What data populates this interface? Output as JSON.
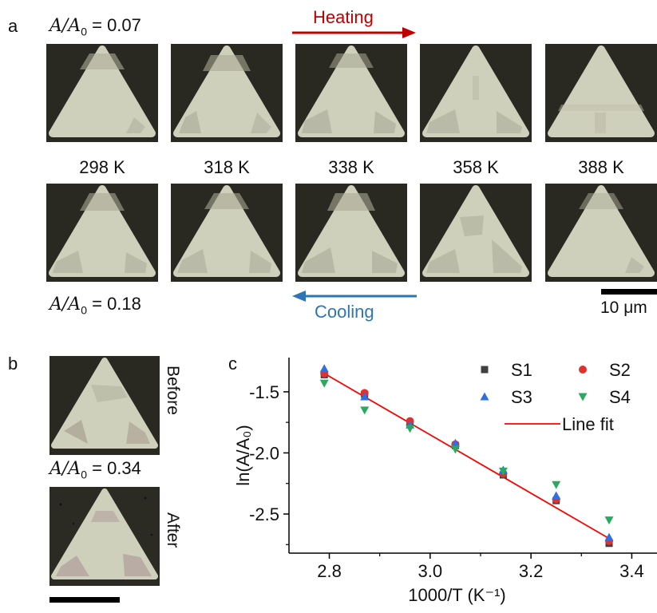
{
  "panels": {
    "a": "a",
    "b": "b",
    "c": "c"
  },
  "panel_a": {
    "ratio_top": {
      "lhs": "A/A",
      "sub": "0",
      "rhs": "= 0.07"
    },
    "ratio_bottom": {
      "lhs": "A/A",
      "sub": "0",
      "rhs": "= 0.18"
    },
    "heating_label": "Heating",
    "cooling_label": "Cooling",
    "temperatures": [
      "298 K",
      "318 K",
      "338 K",
      "358 K",
      "388 K"
    ],
    "scale_label": "10 μm",
    "colors": {
      "heating": "#c00000",
      "cooling": "#2e75b6",
      "frame": "#2a2921",
      "crystal": "#cfd0bc"
    }
  },
  "panel_b": {
    "before_label": "Before",
    "after_label": "After",
    "ratio": {
      "lhs": "A/A",
      "sub": "0",
      "rhs": "= 0.34"
    }
  },
  "chart_data": {
    "type": "scatter",
    "xlabel": "1000/T (K⁻¹)",
    "ylabel": "ln(A/A₀)",
    "xlim": [
      2.72,
      3.45
    ],
    "ylim": [
      -2.82,
      -1.22
    ],
    "xticks": [
      "2.8",
      "3.0",
      "3.2",
      "3.4"
    ],
    "yticks": [
      "-1.5",
      "-2.0",
      "-2.5"
    ],
    "legend_position": "top-right",
    "series": [
      {
        "name": "S1",
        "marker": "square",
        "color": "#404040",
        "x": [
          2.79,
          2.87,
          2.96,
          3.05,
          3.145,
          3.25,
          3.355
        ],
        "y": [
          -1.36,
          -1.52,
          -1.76,
          -1.94,
          -2.18,
          -2.39,
          -2.74
        ]
      },
      {
        "name": "S2",
        "marker": "circle",
        "color": "#e03030",
        "x": [
          2.79,
          2.87,
          2.96,
          3.05,
          3.145,
          3.25,
          3.355
        ],
        "y": [
          -1.35,
          -1.51,
          -1.74,
          -1.93,
          -2.17,
          -2.38,
          -2.72
        ]
      },
      {
        "name": "S3",
        "marker": "triangle-up",
        "color": "#2f6fe0",
        "x": [
          2.79,
          2.87,
          2.96,
          3.05,
          3.145,
          3.25,
          3.355
        ],
        "y": [
          -1.31,
          -1.54,
          -1.77,
          -1.92,
          -2.14,
          -2.35,
          -2.69
        ]
      },
      {
        "name": "S4",
        "marker": "triangle-down",
        "color": "#2aaa60",
        "x": [
          2.79,
          2.87,
          2.96,
          3.05,
          3.145,
          3.25,
          3.355
        ],
        "y": [
          -1.43,
          -1.65,
          -1.8,
          -1.97,
          -2.15,
          -2.26,
          -2.55
        ]
      }
    ],
    "fit": {
      "name": "Line fit",
      "color": "#ff0000",
      "x": [
        2.79,
        3.355
      ],
      "y": [
        -1.35,
        -2.7
      ]
    }
  }
}
